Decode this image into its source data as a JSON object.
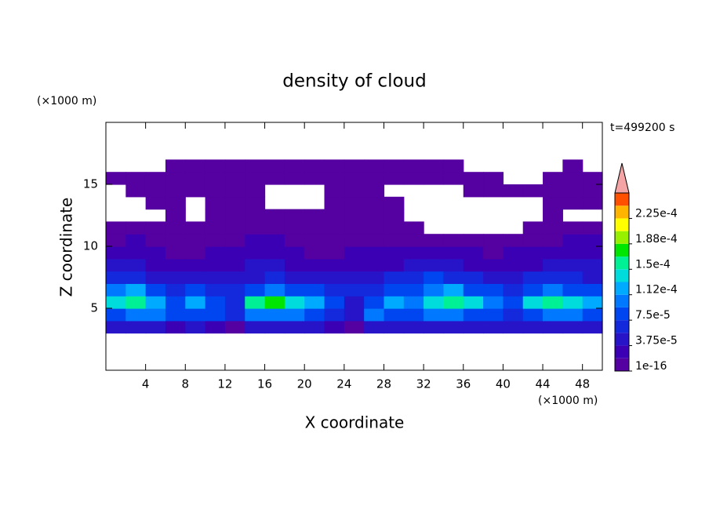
{
  "chart_data": {
    "type": "contour",
    "title": "density of cloud",
    "xlabel": "X coordinate",
    "ylabel": "Z coordinate",
    "x_unit": "(×1000 m)",
    "y_unit": "(×1000 m)",
    "annotation": "t=499200 s",
    "xlim": [
      0,
      50
    ],
    "ylim": [
      0,
      20
    ],
    "xticks": [
      4,
      8,
      12,
      16,
      20,
      24,
      28,
      32,
      36,
      40,
      44,
      48
    ],
    "yticks": [
      5,
      10,
      15
    ],
    "x_bins": [
      0,
      2,
      4,
      6,
      8,
      10,
      12,
      14,
      16,
      18,
      20,
      22,
      24,
      26,
      28,
      30,
      32,
      34,
      36,
      38,
      40,
      42,
      44,
      46,
      48,
      50
    ],
    "y_bins": [
      0,
      1,
      2,
      3,
      4,
      5,
      6,
      7,
      8,
      9,
      10,
      11,
      12,
      13,
      14,
      15,
      16,
      17,
      18,
      19,
      20
    ],
    "z": [
      [
        null,
        null,
        null,
        null,
        null,
        null,
        null,
        null,
        null,
        null,
        null,
        null,
        null,
        null,
        null,
        null,
        null,
        null,
        null,
        null,
        null,
        null,
        null,
        null,
        null
      ],
      [
        null,
        null,
        null,
        null,
        null,
        null,
        null,
        null,
        null,
        null,
        null,
        null,
        null,
        null,
        null,
        null,
        null,
        null,
        null,
        null,
        null,
        null,
        null,
        null,
        null
      ],
      [
        null,
        null,
        null,
        null,
        null,
        null,
        null,
        null,
        null,
        null,
        null,
        null,
        null,
        null,
        null,
        null,
        null,
        null,
        null,
        null,
        null,
        null,
        null,
        null,
        null
      ],
      [
        4.5e-05,
        4.5e-05,
        4.5e-05,
        2.5e-05,
        4.5e-05,
        2.5e-05,
        5e-06,
        4.5e-05,
        4.5e-05,
        4.5e-05,
        4.5e-05,
        2.5e-05,
        5e-06,
        4.5e-05,
        4.5e-05,
        4.5e-05,
        4.5e-05,
        4.5e-05,
        4.5e-05,
        4.5e-05,
        4.5e-05,
        4.5e-05,
        4.5e-05,
        4.5e-05,
        4.5e-05
      ],
      [
        8e-05,
        0.0001,
        0.0001,
        8e-05,
        8e-05,
        8e-05,
        6e-05,
        0.0001,
        0.0001,
        0.0001,
        8e-05,
        6e-05,
        4.5e-05,
        0.0001,
        8e-05,
        8e-05,
        0.0001,
        0.0001,
        8e-05,
        8e-05,
        6e-05,
        8e-05,
        0.0001,
        0.0001,
        8e-05
      ],
      [
        0.00014,
        0.00016,
        0.00012,
        8e-05,
        0.00012,
        8e-05,
        6e-05,
        0.00016,
        0.00018,
        0.00014,
        0.00012,
        8e-05,
        4.5e-05,
        8e-05,
        0.00012,
        0.0001,
        0.00014,
        0.00016,
        0.00014,
        0.0001,
        8e-05,
        0.00014,
        0.00016,
        0.00014,
        0.00012
      ],
      [
        0.0001,
        0.00012,
        8e-05,
        6e-05,
        8e-05,
        6e-05,
        6e-05,
        8e-05,
        0.0001,
        8e-05,
        8e-05,
        6e-05,
        6e-05,
        6e-05,
        8e-05,
        8e-05,
        0.0001,
        0.00012,
        8e-05,
        8e-05,
        6e-05,
        8e-05,
        0.0001,
        8e-05,
        8e-05
      ],
      [
        6e-05,
        6e-05,
        4.5e-05,
        4.5e-05,
        4.5e-05,
        4.5e-05,
        4.5e-05,
        4.5e-05,
        6e-05,
        4.5e-05,
        4.5e-05,
        4.5e-05,
        4.5e-05,
        4.5e-05,
        6e-05,
        6e-05,
        8e-05,
        6e-05,
        6e-05,
        4.5e-05,
        4.5e-05,
        6e-05,
        6e-05,
        6e-05,
        4.5e-05
      ],
      [
        4.5e-05,
        4.5e-05,
        2.5e-05,
        2.5e-05,
        2.5e-05,
        2.5e-05,
        2.5e-05,
        4.5e-05,
        4.5e-05,
        2.5e-05,
        2.5e-05,
        2.5e-05,
        2.5e-05,
        2.5e-05,
        2.5e-05,
        4.5e-05,
        4.5e-05,
        4.5e-05,
        2.5e-05,
        2.5e-05,
        2.5e-05,
        2.5e-05,
        4.5e-05,
        4.5e-05,
        4.5e-05
      ],
      [
        2.5e-05,
        2.5e-05,
        2.5e-05,
        5e-06,
        5e-06,
        2.5e-05,
        2.5e-05,
        2.5e-05,
        2.5e-05,
        2.5e-05,
        5e-06,
        5e-06,
        2.5e-05,
        2.5e-05,
        2.5e-05,
        2.5e-05,
        2.5e-05,
        2.5e-05,
        2.5e-05,
        5e-06,
        2.5e-05,
        2.5e-05,
        2.5e-05,
        2.5e-05,
        2.5e-05
      ],
      [
        5e-06,
        2.5e-05,
        5e-06,
        5e-06,
        5e-06,
        5e-06,
        5e-06,
        2.5e-05,
        2.5e-05,
        5e-06,
        5e-06,
        5e-06,
        5e-06,
        5e-06,
        5e-06,
        5e-06,
        5e-06,
        5e-06,
        5e-06,
        5e-06,
        5e-06,
        5e-06,
        5e-06,
        2.5e-05,
        2.5e-05
      ],
      [
        5e-06,
        5e-06,
        5e-06,
        5e-06,
        5e-06,
        5e-06,
        5e-06,
        5e-06,
        5e-06,
        5e-06,
        5e-06,
        5e-06,
        5e-06,
        5e-06,
        5e-06,
        5e-06,
        null,
        null,
        null,
        null,
        null,
        5e-06,
        5e-06,
        5e-06,
        5e-06
      ],
      [
        null,
        null,
        null,
        5e-06,
        null,
        5e-06,
        5e-06,
        5e-06,
        5e-06,
        5e-06,
        5e-06,
        5e-06,
        5e-06,
        5e-06,
        5e-06,
        null,
        null,
        null,
        null,
        null,
        null,
        null,
        5e-06,
        null,
        null
      ],
      [
        null,
        null,
        5e-06,
        5e-06,
        null,
        5e-06,
        5e-06,
        5e-06,
        null,
        null,
        null,
        5e-06,
        5e-06,
        5e-06,
        5e-06,
        null,
        null,
        null,
        null,
        null,
        null,
        null,
        5e-06,
        5e-06,
        5e-06
      ],
      [
        null,
        5e-06,
        5e-06,
        5e-06,
        5e-06,
        5e-06,
        5e-06,
        5e-06,
        null,
        null,
        null,
        5e-06,
        5e-06,
        5e-06,
        null,
        null,
        null,
        null,
        5e-06,
        5e-06,
        5e-06,
        5e-06,
        5e-06,
        5e-06,
        5e-06
      ],
      [
        5e-06,
        5e-06,
        5e-06,
        5e-06,
        5e-06,
        5e-06,
        5e-06,
        5e-06,
        5e-06,
        5e-06,
        5e-06,
        5e-06,
        5e-06,
        5e-06,
        5e-06,
        5e-06,
        5e-06,
        5e-06,
        5e-06,
        5e-06,
        null,
        null,
        5e-06,
        5e-06,
        5e-06
      ],
      [
        null,
        null,
        null,
        5e-06,
        5e-06,
        5e-06,
        5e-06,
        5e-06,
        5e-06,
        5e-06,
        5e-06,
        5e-06,
        5e-06,
        5e-06,
        5e-06,
        5e-06,
        5e-06,
        5e-06,
        null,
        null,
        null,
        null,
        null,
        5e-06,
        null
      ],
      [
        null,
        null,
        null,
        null,
        null,
        null,
        null,
        null,
        null,
        null,
        null,
        null,
        null,
        null,
        null,
        null,
        null,
        null,
        null,
        null,
        null,
        null,
        null,
        null,
        null
      ],
      [
        null,
        null,
        null,
        null,
        null,
        null,
        null,
        null,
        null,
        null,
        null,
        null,
        null,
        null,
        null,
        null,
        null,
        null,
        null,
        null,
        null,
        null,
        null,
        null,
        null
      ],
      [
        null,
        null,
        null,
        null,
        null,
        null,
        null,
        null,
        null,
        null,
        null,
        null,
        null,
        null,
        null,
        null,
        null,
        null,
        null,
        null,
        null,
        null,
        null,
        null,
        null
      ]
    ],
    "levels": [
      1e-16,
      1.875e-05,
      3.75e-05,
      5.625e-05,
      7.5e-05,
      9.375e-05,
      0.0001125,
      0.00013125,
      0.00015,
      0.00016875,
      0.0001875,
      0.00020625,
      0.000225,
      0.00024375,
      0.0002625
    ],
    "colors": [
      "#5500a0",
      "#3c00b4",
      "#2814c8",
      "#1428dc",
      "#0046f0",
      "#0078ff",
      "#00aaff",
      "#00dcdc",
      "#00f096",
      "#00e600",
      "#96f000",
      "#ffff00",
      "#ffb400",
      "#ff5000"
    ],
    "extend_color": "#f4a4a4",
    "colorbar_ticks": [
      1e-16,
      {
        "value": 3.75e-05,
        "label": "3.75e-5"
      },
      {
        "value": 7.5e-05,
        "label": "7.5e-5"
      },
      {
        "value": 0.0001125,
        "label": "1.12e-4"
      },
      {
        "value": 0.00015,
        "label": "1.5e-4"
      },
      {
        "value": 0.0001875,
        "label": "1.88e-4"
      },
      {
        "value": 0.000225,
        "label": "2.25e-4"
      }
    ]
  }
}
